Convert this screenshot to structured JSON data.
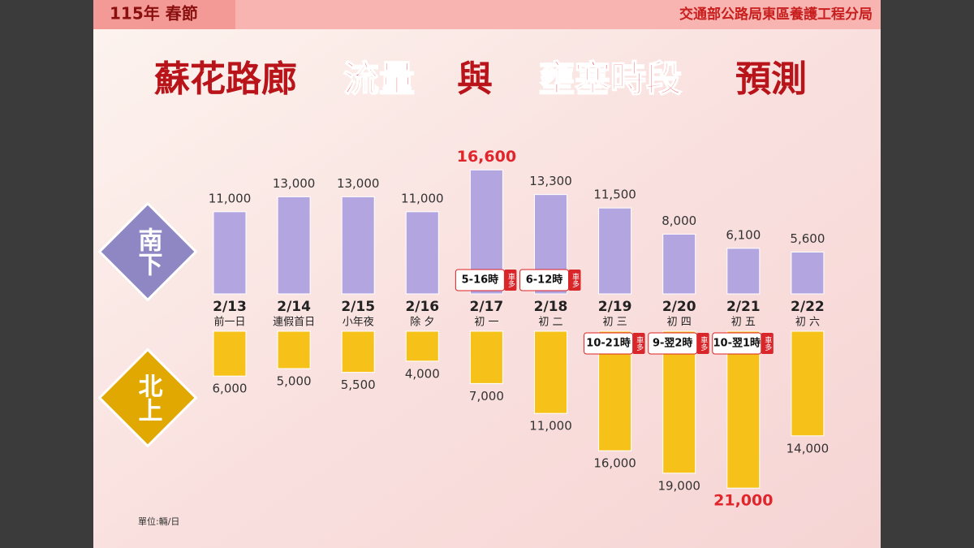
{
  "header": {
    "tag": "115年 春節",
    "agency": "交通部公路局東區養護工程分局"
  },
  "chart_data": {
    "type": "diverging-bar",
    "title_parts": [
      "蘇花路廊",
      "流量",
      "與",
      "壅塞時段",
      "預測"
    ],
    "categories": [
      "2/13",
      "2/14",
      "2/15",
      "2/16",
      "2/17",
      "2/18",
      "2/19",
      "2/20",
      "2/21",
      "2/22"
    ],
    "subcategories": [
      "前一日",
      "連假首日",
      "小年夜",
      "除 夕",
      "初 一",
      "初 二",
      "初 三",
      "初 四",
      "初 五",
      "初 六"
    ],
    "series": [
      {
        "name": "南下",
        "color": "#b3a6e0",
        "values": [
          11000,
          13000,
          13000,
          11000,
          16600,
          13300,
          11500,
          8000,
          6100,
          5600
        ],
        "value_labels": [
          "11,000",
          "13,000",
          "13,000",
          "11,000",
          "16,600",
          "13,300",
          "11,500",
          "8,000",
          "6,100",
          "5,600"
        ],
        "congestion": [
          null,
          null,
          null,
          null,
          "5-16時",
          "6-12時",
          null,
          null,
          null,
          null
        ]
      },
      {
        "name": "北上",
        "color": "#f6c21a",
        "values": [
          6000,
          5000,
          5500,
          4000,
          7000,
          11000,
          16000,
          19000,
          21000,
          14000
        ],
        "value_labels": [
          "6,000",
          "5,000",
          "5,500",
          "4,000",
          "7,000",
          "11,000",
          "16,000",
          "19,000",
          "21,000",
          "14,000"
        ],
        "congestion": [
          null,
          null,
          null,
          null,
          null,
          null,
          "10-21時",
          "9-翌2時",
          "10-翌1時",
          null
        ]
      }
    ],
    "congestion_badge": "車多",
    "unit": "單位:輛/日"
  }
}
